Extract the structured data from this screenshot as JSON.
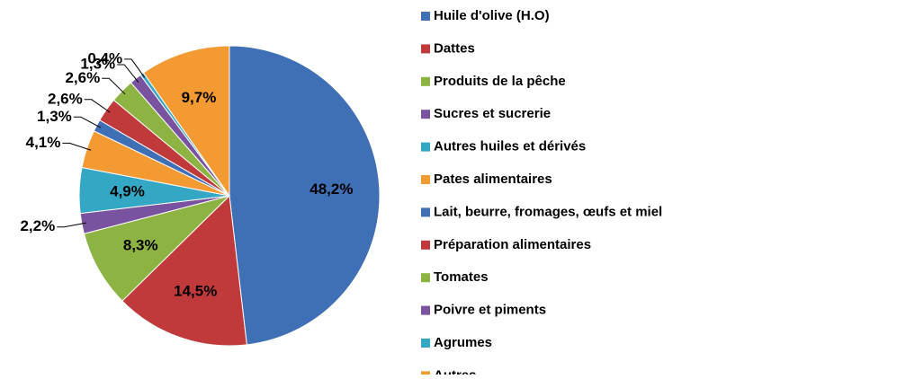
{
  "chart_data": {
    "type": "pie",
    "categories": [
      "Huile d'olive (H.O)",
      "Dattes",
      "Produits de la pêche",
      "Sucres et sucrerie",
      "Autres huiles et dérivés",
      "Pates alimentaires",
      "Lait, beurre, fromages, œufs et miel",
      "Préparation alimentaires",
      "Tomates",
      "Poivre et piments",
      "Agrumes",
      "Autres"
    ],
    "values": [
      48.2,
      14.5,
      8.3,
      2.2,
      4.9,
      4.1,
      1.3,
      2.6,
      2.6,
      1.3,
      0.4,
      9.7
    ],
    "value_labels": [
      "48,2%",
      "14,5%",
      "8,3%",
      "2,2%",
      "4,9%",
      "4,1%",
      "1,3%",
      "2,6%",
      "2,6%",
      "1,3%",
      "0,4%",
      "9,7%"
    ],
    "colors": [
      "#3f6fb5",
      "#c0393b",
      "#8db443",
      "#7a53a0",
      "#33a7c4",
      "#f39a32",
      "#3f6fb5",
      "#c0393b",
      "#8db443",
      "#7a53a0",
      "#33a7c4",
      "#f39a32"
    ],
    "legend": "right"
  }
}
